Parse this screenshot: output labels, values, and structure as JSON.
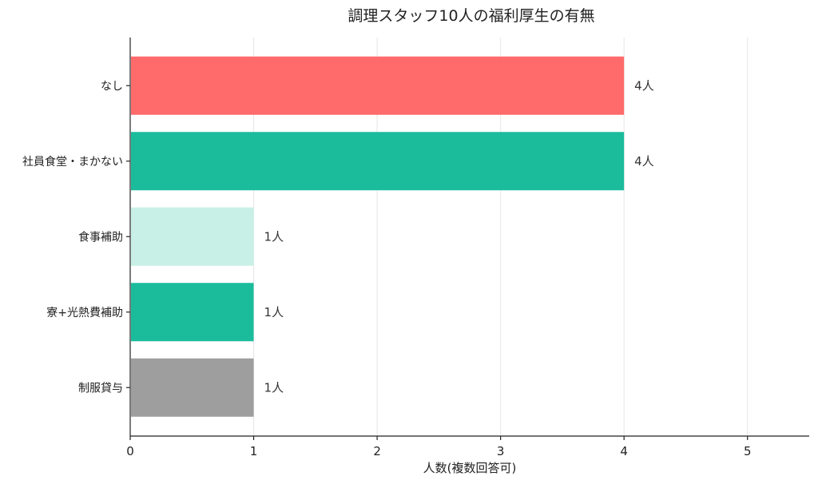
{
  "chart_data": {
    "type": "bar",
    "orientation": "horizontal",
    "title": "調理スタッフ10人の福利厚生の有無",
    "xlabel": "人数(複数回答可)",
    "ylabel": "",
    "xlim": [
      0,
      5.5
    ],
    "xticks": [
      0,
      1,
      2,
      3,
      4,
      5
    ],
    "grid": true,
    "categories": [
      "なし",
      "社員食堂・まかない",
      "食事補助",
      "寮+光熱費補助",
      "制服貸与"
    ],
    "values": [
      4,
      4,
      1,
      1,
      1
    ],
    "value_labels": [
      "4人",
      "4人",
      "1人",
      "1人",
      "1人"
    ],
    "colors": [
      "#ff6b6b",
      "#1abc9c",
      "#c8f0e6",
      "#1abc9c",
      "#9e9e9e"
    ]
  }
}
